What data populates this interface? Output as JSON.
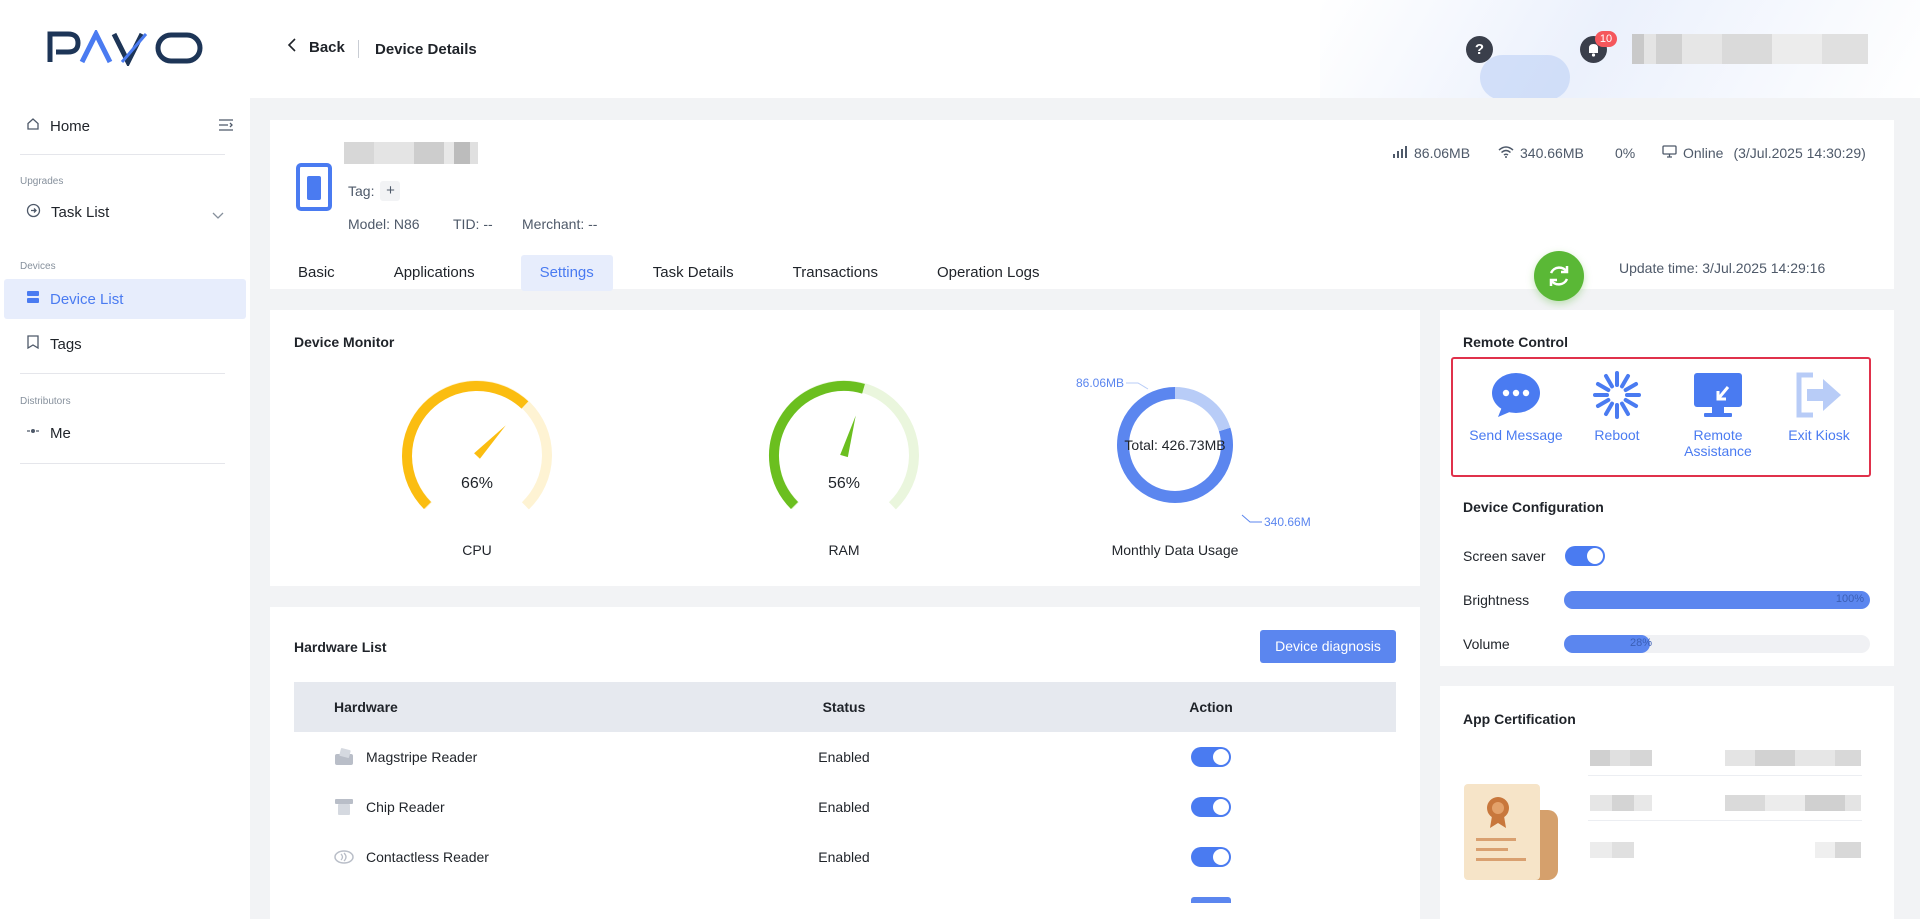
{
  "app": {
    "logo_text": "PAVO"
  },
  "header": {
    "back_label": "Back",
    "page_title": "Device Details",
    "help_label": "?",
    "notification_count": "10"
  },
  "sidebar": {
    "home": "Home",
    "sections": {
      "upgrades": "Upgrades",
      "devices": "Devices",
      "distributors": "Distributors"
    },
    "task_list": "Task List",
    "device_list": "Device List",
    "tags": "Tags",
    "me": "Me"
  },
  "device": {
    "tag_label": "Tag:",
    "tag_add": "+",
    "model": "Model: N86",
    "tid": "TID: --",
    "merchant": "Merchant: --",
    "cellular_usage": "86.06MB",
    "wifi_usage": "340.66MB",
    "battery": "0%",
    "status": "Online",
    "status_time": "(3/Jul.2025 14:30:29)",
    "update_time": "Update time: 3/Jul.2025 14:29:16"
  },
  "tabs": [
    "Basic",
    "Applications",
    "Settings",
    "Task Details",
    "Transactions",
    "Operation Logs"
  ],
  "active_tab": "Settings",
  "monitor": {
    "title": "Device Monitor",
    "cpu": {
      "label": "CPU",
      "value_text": "66%",
      "value": 66
    },
    "ram": {
      "label": "RAM",
      "value_text": "56%",
      "value": 56
    },
    "data_usage": {
      "label": "Monthly Data Usage",
      "total": "Total: 426.73MB",
      "cellular": "86.06MB",
      "wifi": "340.66MB"
    }
  },
  "chart_data": {
    "type": "pie",
    "title": "Monthly Data Usage",
    "categories": [
      "86.06MB",
      "340.66MB"
    ],
    "values": [
      86.06,
      340.66
    ],
    "center_label": "Total: 426.73MB"
  },
  "remote_control": {
    "title": "Remote Control",
    "actions": [
      "Send Message",
      "Reboot",
      "Remote Assistance",
      "Exit Kiosk"
    ]
  },
  "device_config": {
    "title": "Device Configuration",
    "screen_saver_label": "Screen saver",
    "screen_saver_on": true,
    "brightness_label": "Brightness",
    "brightness_text": "100%",
    "brightness": 100,
    "volume_label": "Volume",
    "volume_text": "28%",
    "volume": 28
  },
  "hardware": {
    "title": "Hardware List",
    "diagnosis_button": "Device diagnosis",
    "columns": [
      "Hardware",
      "Status",
      "Action"
    ],
    "rows": [
      {
        "name": "Magstripe Reader",
        "status": "Enabled",
        "enabled": true
      },
      {
        "name": "Chip Reader",
        "status": "Enabled",
        "enabled": true
      },
      {
        "name": "Contactless Reader",
        "status": "Enabled",
        "enabled": true
      }
    ]
  },
  "app_certification": {
    "title": "App Certification"
  },
  "colors": {
    "primary": "#4a7bf1",
    "success": "#5ab836",
    "cpu_gauge": "#fbbd10",
    "ram_gauge": "#6bbf1f",
    "highlight_border": "#e0314b"
  }
}
